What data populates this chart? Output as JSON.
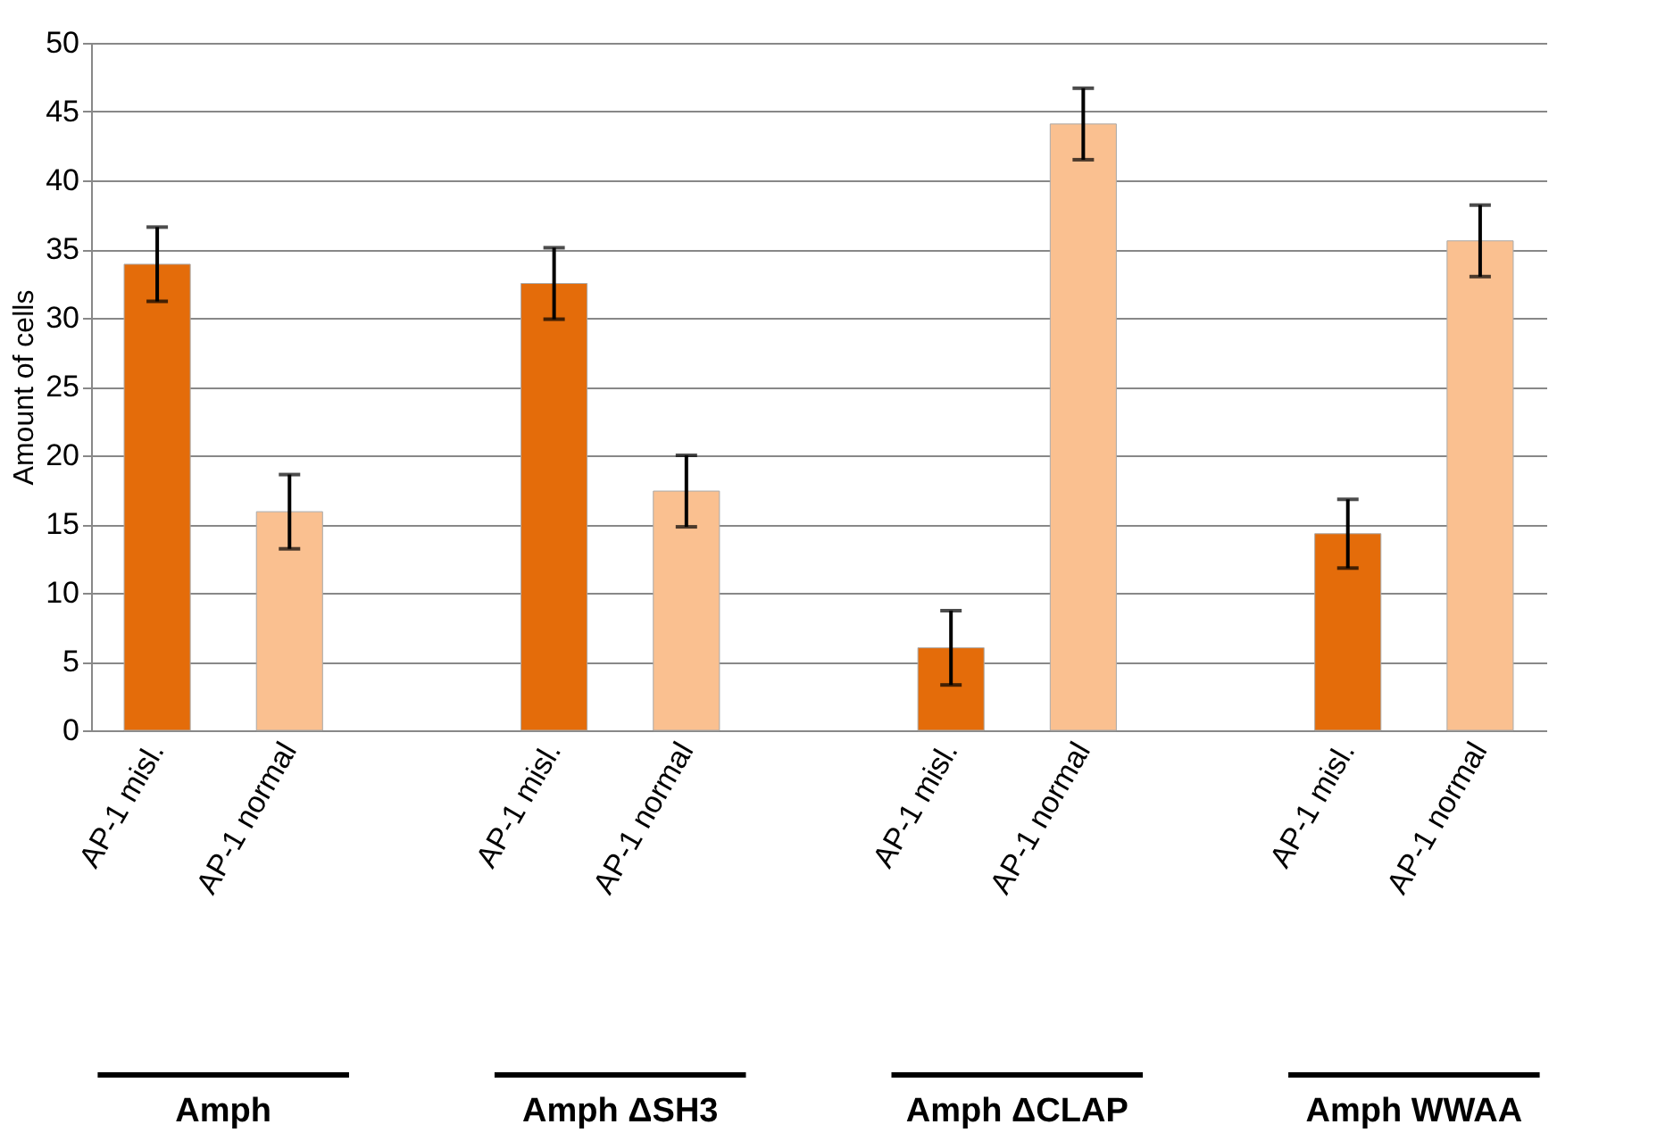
{
  "chart_data": {
    "type": "bar",
    "ylabel": "Amount of cells",
    "categories": [
      "AP-1 misl.",
      "AP-1 normal",
      null,
      "AP-1 misl.",
      "AP-1 normal",
      null,
      "AP-1 misl.",
      "AP-1 normal",
      null,
      "AP-1 misl.",
      "AP-1 normal"
    ],
    "values": [
      33.9,
      15.9,
      null,
      32.5,
      17.4,
      null,
      6.0,
      44.1,
      null,
      14.3,
      35.6
    ],
    "errors": [
      2.7,
      2.7,
      null,
      2.6,
      2.6,
      null,
      2.7,
      2.6,
      null,
      2.5,
      2.6
    ],
    "colors": [
      "#e46c0a",
      "#fac090",
      "#ffffff",
      "#e46c0a",
      "#fac090",
      "#ffffff",
      "#e46c0a",
      "#fac090",
      "#ffffff",
      "#e46c0a",
      "#fac090"
    ],
    "ylim": [
      0,
      50
    ],
    "yticks": [
      0,
      5,
      10,
      15,
      20,
      25,
      30,
      35,
      40,
      45,
      50
    ],
    "grid": "y",
    "annotations": [
      "Amph",
      "Amph ΔSH3",
      "Amph ΔCLAP",
      "Amph WWAA"
    ]
  }
}
